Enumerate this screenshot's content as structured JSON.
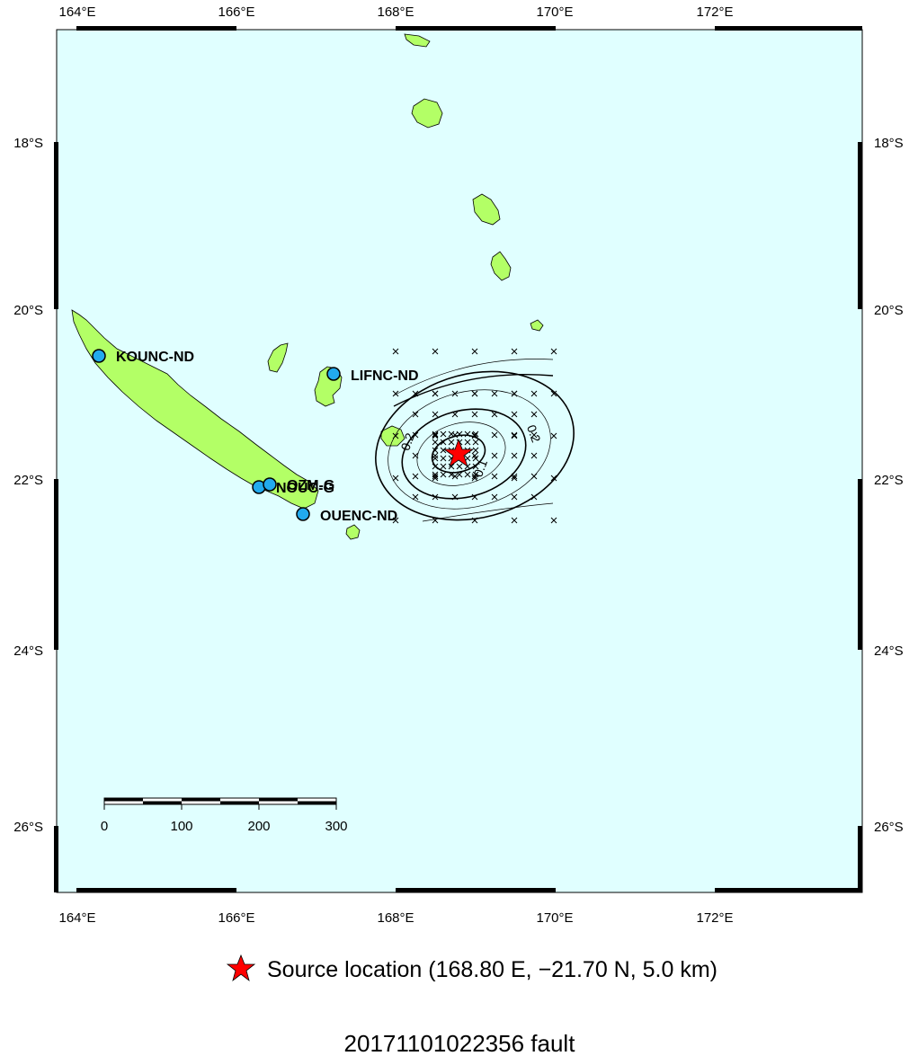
{
  "map": {
    "lon_ticks": [
      "164°E",
      "166°E",
      "168°E",
      "170°E",
      "172°E"
    ],
    "lat_ticks": [
      "18°S",
      "20°S",
      "22°S",
      "24°S",
      "26°S"
    ],
    "ocean_color": "#e0ffff",
    "land_color": "#b3ff66",
    "station_color": "#22aaee",
    "source_color": "#ff0000"
  },
  "stations": [
    {
      "name": "KOUNC-ND",
      "lon": 164.28,
      "lat": -20.55
    },
    {
      "name": "LIFNC-ND",
      "lon": 167.22,
      "lat": -20.77
    },
    {
      "name": "NOUC-G",
      "lon": 166.28,
      "lat": -22.1
    },
    {
      "name": "OZM-G",
      "lon": 166.42,
      "lat": -22.07
    },
    {
      "name": "OUENC-ND",
      "lon": 166.83,
      "lat": -22.42
    }
  ],
  "contour_labels": [
    "0.2",
    "0.2",
    "0.1"
  ],
  "scale_bar": {
    "labels": [
      "0",
      "100",
      "200",
      "300"
    ]
  },
  "source": {
    "lon": 168.8,
    "lat": -21.7,
    "depth_km": 5.0
  },
  "legend": {
    "text": "Source location (168.80 E, −21.70 N, 5.0 km)"
  },
  "title": "20171101022356 fault"
}
